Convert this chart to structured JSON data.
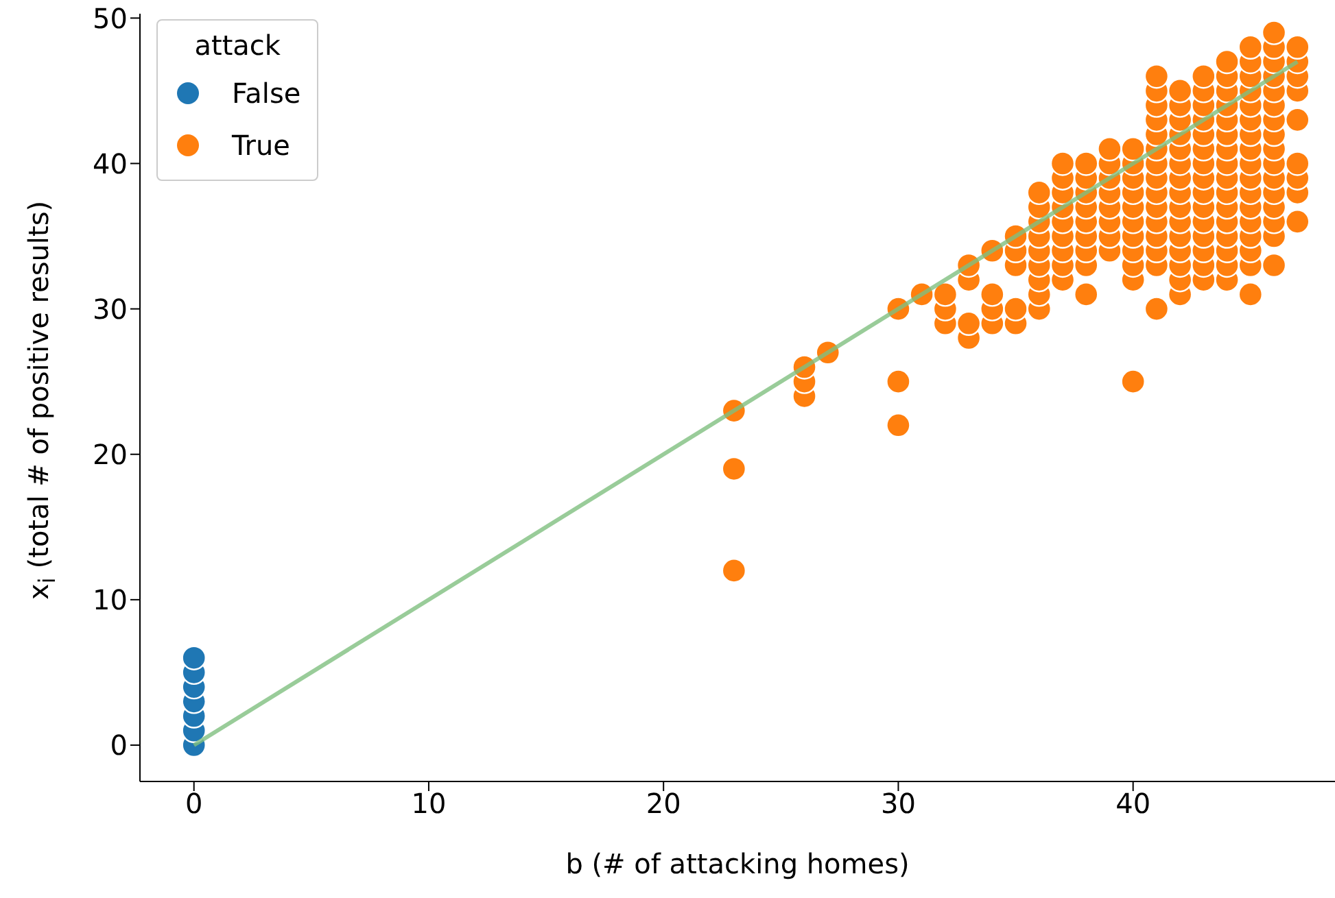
{
  "chart_data": {
    "type": "scatter",
    "xlabel": "b (# of attacking homes)",
    "ylabel": "x$_{i}$ (total # of positive results)",
    "legend_title": "attack",
    "xlim": [
      -2.3,
      48.6
    ],
    "ylim": [
      -2.5,
      50.3
    ],
    "xticks": [
      0,
      10,
      20,
      30,
      40
    ],
    "yticks": [
      0,
      10,
      20,
      30,
      40,
      50
    ],
    "grid": false,
    "legend": "top left",
    "marker": "circle",
    "series": [
      {
        "name": "False",
        "color": "#1f77b4",
        "x": [
          0,
          0,
          0,
          0,
          0,
          0,
          0
        ],
        "values": [
          0,
          1,
          2,
          3,
          4,
          5,
          6
        ]
      },
      {
        "name": "True",
        "color": "#ff7f0e",
        "x": [
          23,
          23,
          23,
          26,
          26,
          26,
          27,
          30,
          30,
          30,
          31,
          32,
          32,
          32,
          33,
          33,
          33,
          33,
          34,
          34,
          34,
          34,
          35,
          35,
          35,
          35,
          35,
          36,
          36,
          36,
          36,
          36,
          36,
          36,
          36,
          36,
          37,
          37,
          37,
          37,
          37,
          37,
          37,
          37,
          37,
          38,
          38,
          38,
          38,
          38,
          38,
          38,
          38,
          38,
          39,
          39,
          39,
          39,
          39,
          39,
          39,
          39,
          40,
          40,
          40,
          40,
          40,
          40,
          40,
          40,
          40,
          40,
          40,
          41,
          41,
          41,
          41,
          41,
          41,
          41,
          41,
          41,
          41,
          41,
          41,
          41,
          41,
          41,
          42,
          42,
          42,
          42,
          42,
          42,
          42,
          42,
          42,
          42,
          42,
          42,
          42,
          42,
          42,
          43,
          43,
          43,
          43,
          43,
          43,
          43,
          43,
          43,
          43,
          43,
          43,
          43,
          43,
          43,
          44,
          44,
          44,
          44,
          44,
          44,
          44,
          44,
          44,
          44,
          44,
          44,
          44,
          44,
          44,
          44,
          45,
          45,
          45,
          45,
          45,
          45,
          45,
          45,
          45,
          45,
          45,
          45,
          45,
          45,
          45,
          45,
          45,
          46,
          46,
          46,
          46,
          46,
          46,
          46,
          46,
          46,
          46,
          46,
          46,
          46,
          46,
          46,
          46,
          47,
          47,
          47,
          47,
          47,
          47,
          47,
          47,
          47
        ],
        "values": [
          12,
          19,
          23,
          24,
          25,
          26,
          27,
          22,
          25,
          30,
          31,
          29,
          30,
          31,
          28,
          29,
          32,
          33,
          29,
          30,
          31,
          34,
          29,
          30,
          33,
          34,
          35,
          30,
          31,
          32,
          33,
          34,
          35,
          36,
          37,
          38,
          32,
          33,
          34,
          35,
          36,
          37,
          38,
          39,
          40,
          31,
          33,
          34,
          35,
          36,
          37,
          38,
          39,
          40,
          34,
          35,
          36,
          37,
          38,
          39,
          40,
          41,
          25,
          32,
          33,
          34,
          35,
          36,
          37,
          38,
          39,
          40,
          41,
          30,
          33,
          34,
          35,
          36,
          37,
          38,
          39,
          40,
          41,
          42,
          43,
          44,
          45,
          46,
          31,
          32,
          33,
          34,
          35,
          36,
          37,
          38,
          39,
          40,
          41,
          42,
          43,
          44,
          45,
          32,
          33,
          34,
          35,
          36,
          37,
          38,
          39,
          40,
          41,
          42,
          43,
          44,
          45,
          46,
          32,
          33,
          34,
          35,
          36,
          37,
          38,
          39,
          40,
          41,
          42,
          43,
          44,
          45,
          46,
          47,
          31,
          33,
          34,
          35,
          36,
          37,
          38,
          39,
          40,
          41,
          42,
          43,
          44,
          45,
          46,
          47,
          48,
          33,
          35,
          36,
          37,
          38,
          39,
          40,
          41,
          42,
          43,
          44,
          45,
          46,
          47,
          48,
          49,
          36,
          38,
          39,
          40,
          43,
          45,
          46,
          47,
          48
        ]
      },
      {
        "type": "line",
        "color": "#7fbf7f",
        "x": [
          0,
          47
        ],
        "values": [
          0,
          47
        ],
        "marker": "none"
      }
    ]
  }
}
